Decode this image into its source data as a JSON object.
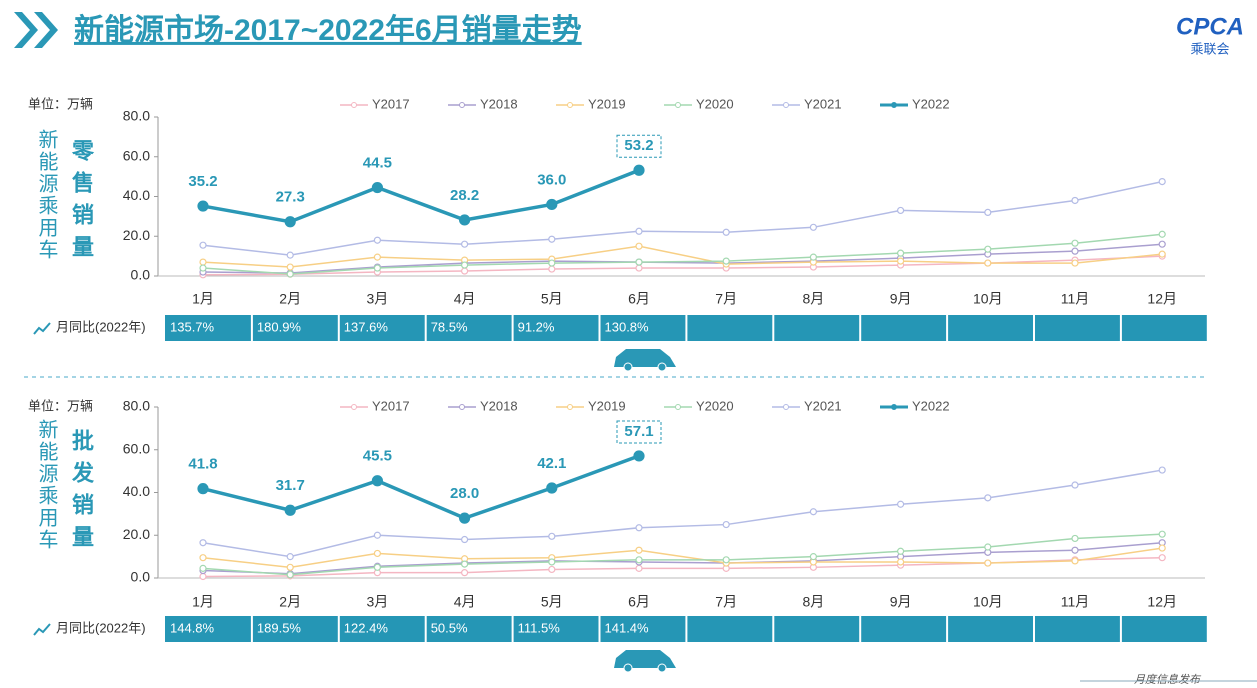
{
  "header": {
    "title": "新能源市场-2017~2022年6月销量走势",
    "logo": "CPCA",
    "logo_sub": "乘联会"
  },
  "footer": "月度信息发布",
  "chart_data": [
    {
      "type": "line",
      "title": "零售销量",
      "ylabel": "新能源乘用车",
      "unit": "单位：万辆",
      "categories": [
        "1月",
        "2月",
        "3月",
        "4月",
        "5月",
        "6月",
        "7月",
        "8月",
        "9月",
        "10月",
        "11月",
        "12月"
      ],
      "ylim": [
        0,
        80
      ],
      "yticks": [
        {
          "value": 0,
          "label": "0.0"
        },
        {
          "value": 20,
          "label": "20.0"
        },
        {
          "value": 40,
          "label": "40.0"
        },
        {
          "value": 60,
          "label": "60.0"
        },
        {
          "value": 80,
          "label": "80.0"
        }
      ],
      "series": [
        {
          "name": "Y2017",
          "color": "#f4b6c2",
          "values": [
            0.6,
            0.9,
            2.0,
            2.5,
            3.5,
            4.0,
            4.0,
            4.5,
            5.5,
            6.5,
            8.0,
            10.0
          ]
        },
        {
          "name": "Y2018",
          "color": "#a99fcf",
          "values": [
            2.0,
            1.5,
            4.5,
            6.5,
            7.5,
            7.0,
            6.5,
            7.5,
            9.0,
            11.0,
            12.5,
            16.0
          ]
        },
        {
          "name": "Y2019",
          "color": "#f7cf85",
          "values": [
            7.0,
            4.5,
            9.5,
            8.0,
            8.5,
            15.0,
            6.0,
            7.0,
            7.5,
            6.5,
            6.5,
            11.0
          ]
        },
        {
          "name": "Y2020",
          "color": "#a3d8b0",
          "values": [
            4.0,
            1.0,
            4.0,
            5.5,
            6.5,
            7.0,
            7.5,
            9.5,
            11.5,
            13.5,
            16.5,
            21.0
          ]
        },
        {
          "name": "Y2021",
          "color": "#b3bbe5",
          "values": [
            15.5,
            10.5,
            18.0,
            16.0,
            18.5,
            22.5,
            22.0,
            24.5,
            33.0,
            32.0,
            38.0,
            47.5
          ]
        },
        {
          "name": "Y2022",
          "color": "#2a98b6",
          "values": [
            35.2,
            27.3,
            44.5,
            28.2,
            36.0,
            53.2,
            null,
            null,
            null,
            null,
            null,
            null
          ],
          "value_labels": [
            "35.2",
            "27.3",
            "44.5",
            "28.2",
            "36.0",
            "53.2",
            null,
            null,
            null,
            null,
            null,
            null
          ]
        }
      ],
      "yoy": {
        "label": "月同比(2022年)",
        "values": [
          "135.7%",
          "180.9%",
          "137.6%",
          "78.5%",
          "91.2%",
          "130.8%"
        ]
      }
    },
    {
      "type": "line",
      "title": "批发销量",
      "ylabel": "新能源乘用车",
      "unit": "单位：万辆",
      "categories": [
        "1月",
        "2月",
        "3月",
        "4月",
        "5月",
        "6月",
        "7月",
        "8月",
        "9月",
        "10月",
        "11月",
        "12月"
      ],
      "ylim": [
        0,
        80
      ],
      "yticks": [
        {
          "value": 0,
          "label": "0.0"
        },
        {
          "value": 20,
          "label": "20.0"
        },
        {
          "value": 40,
          "label": "40.0"
        },
        {
          "value": 60,
          "label": "60.0"
        },
        {
          "value": 80,
          "label": "80.0"
        }
      ],
      "series": [
        {
          "name": "Y2017",
          "color": "#f4b6c2",
          "values": [
            0.7,
            1.0,
            2.5,
            2.5,
            4.0,
            4.5,
            4.5,
            5.0,
            6.0,
            7.0,
            8.5,
            9.5
          ]
        },
        {
          "name": "Y2018",
          "color": "#a99fcf",
          "values": [
            3.5,
            2.0,
            5.5,
            7.0,
            8.0,
            7.5,
            7.0,
            8.0,
            10.0,
            12.0,
            13.0,
            16.5
          ]
        },
        {
          "name": "Y2019",
          "color": "#f7cf85",
          "values": [
            9.5,
            5.0,
            11.5,
            9.0,
            9.5,
            13.0,
            7.0,
            7.5,
            7.5,
            7.0,
            8.0,
            14.0
          ]
        },
        {
          "name": "Y2020",
          "color": "#a3d8b0",
          "values": [
            4.5,
            1.5,
            5.0,
            6.5,
            7.5,
            8.5,
            8.5,
            10.0,
            12.5,
            14.5,
            18.5,
            20.5
          ]
        },
        {
          "name": "Y2021",
          "color": "#b3bbe5",
          "values": [
            16.5,
            10.0,
            20.0,
            18.0,
            19.5,
            23.5,
            25.0,
            31.0,
            34.5,
            37.5,
            43.5,
            50.5
          ]
        },
        {
          "name": "Y2022",
          "color": "#2a98b6",
          "values": [
            41.8,
            31.7,
            45.5,
            28.0,
            42.1,
            57.1,
            null,
            null,
            null,
            null,
            null,
            null
          ],
          "value_labels": [
            "41.8",
            "31.7",
            "45.5",
            "28.0",
            "42.1",
            "57.1",
            null,
            null,
            null,
            null,
            null,
            null
          ]
        }
      ],
      "yoy": {
        "label": "月同比(2022年)",
        "values": [
          "144.8%",
          "189.5%",
          "122.4%",
          "50.5%",
          "111.5%",
          "141.4%"
        ]
      }
    }
  ]
}
